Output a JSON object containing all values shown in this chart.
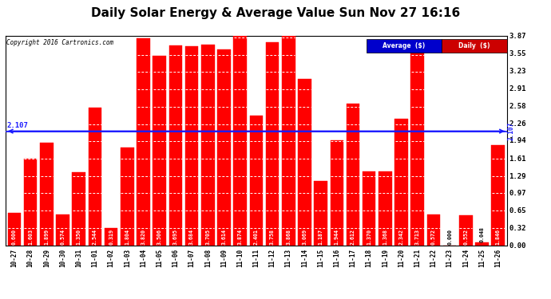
{
  "title": "Daily Solar Energy & Average Value Sun Nov 27 16:16",
  "copyright": "Copyright 2016 Cartronics.com",
  "average_value": 2.107,
  "categories": [
    "10-27",
    "10-28",
    "10-29",
    "10-30",
    "10-31",
    "11-01",
    "11-02",
    "11-03",
    "11-04",
    "11-05",
    "11-06",
    "11-07",
    "11-08",
    "11-09",
    "11-10",
    "11-11",
    "11-12",
    "11-13",
    "11-14",
    "11-15",
    "11-16",
    "11-17",
    "11-18",
    "11-19",
    "11-20",
    "11-21",
    "11-22",
    "11-23",
    "11-24",
    "11-25",
    "11-26"
  ],
  "values": [
    0.6,
    1.603,
    1.899,
    0.574,
    1.35,
    2.544,
    0.319,
    1.804,
    3.82,
    3.506,
    3.695,
    3.684,
    3.705,
    3.614,
    3.874,
    2.401,
    3.758,
    3.868,
    3.069,
    1.187,
    1.944,
    2.612,
    1.37,
    1.368,
    2.342,
    3.713,
    0.572,
    0.0,
    0.552,
    0.048,
    1.846
  ],
  "bar_color": "#ff0000",
  "avg_line_color": "#1a1aff",
  "background_color": "#ffffff",
  "plot_bg_color": "#ffffff",
  "grid_color": "#bbbbbb",
  "title_fontsize": 11,
  "ylabel_right_ticks": [
    0.0,
    0.32,
    0.65,
    0.97,
    1.29,
    1.61,
    1.94,
    2.26,
    2.58,
    2.91,
    3.23,
    3.55,
    3.87
  ],
  "legend_avg_bg": "#0000cc",
  "legend_daily_bg": "#cc0000",
  "ylim": [
    0,
    3.87
  ],
  "avg_right_label": "2.107"
}
